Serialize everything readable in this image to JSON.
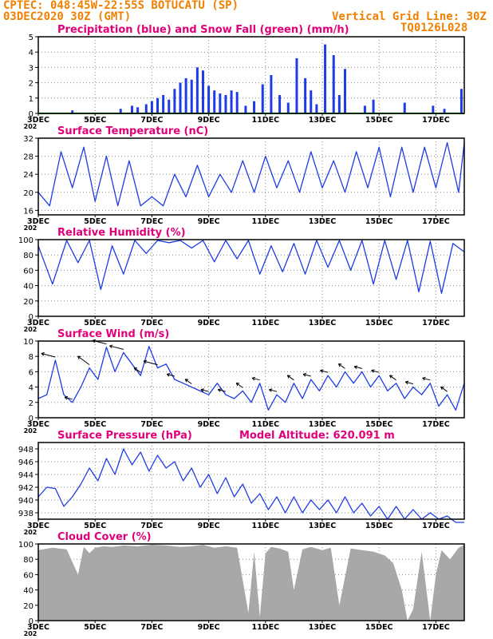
{
  "header": {
    "line1": "CPTEC:   048:45W-22:55S   BOTUCATU (SP)",
    "line2": "03DEC2020 30Z (GMT)",
    "grid_note": "Vertical Grid Line: 30Z",
    "code": "TQ0126L028"
  },
  "colors": {
    "header": "#f08000",
    "title": "#e0007a",
    "series": "#1e3ce6",
    "snow": "#009900",
    "cloud": "#a8a8a8",
    "arrow": "#000000"
  },
  "x_axis": {
    "range_days": [
      3,
      18
    ],
    "tick_days": [
      3,
      5,
      7,
      9,
      11,
      13,
      15,
      17
    ],
    "tick_labels": [
      "3DEC",
      "5DEC",
      "7DEC",
      "9DEC",
      "11DEC",
      "13DEC",
      "15DEC",
      "17DEC"
    ],
    "year_fragment": "202"
  },
  "panels": {
    "precip": {
      "title": "Precipitation (blue) and Snow Fall (green) (mm/h)"
    },
    "temp": {
      "title": "Surface Temperature (nC)"
    },
    "rh": {
      "title": "Relative Humidity (%)"
    },
    "wind": {
      "title": "Surface Wind (m/s)"
    },
    "press": {
      "title": "Surface Pressure (hPa)",
      "altitude": "Model Altitude: 620.091 m"
    },
    "cloud": {
      "title": "Cloud Cover (%)"
    }
  },
  "chart_data": [
    {
      "type": "bar",
      "title": "Precipitation (blue) and Snow Fall (green) (mm/h)",
      "ylim": [
        0,
        5
      ],
      "yticks": [
        0,
        1,
        2,
        3,
        4,
        5
      ],
      "series": [
        {
          "name": "Precipitation",
          "color": "#1e3ce6",
          "x": [
            4.2,
            5.9,
            6.3,
            6.5,
            6.8,
            7.0,
            7.2,
            7.4,
            7.6,
            7.8,
            8.0,
            8.2,
            8.4,
            8.6,
            8.8,
            9.0,
            9.2,
            9.4,
            9.6,
            9.8,
            10.0,
            10.3,
            10.6,
            10.9,
            11.2,
            11.5,
            11.8,
            12.1,
            12.4,
            12.6,
            12.8,
            13.1,
            13.4,
            13.6,
            13.8,
            14.5,
            14.8,
            15.9,
            16.9,
            17.3,
            17.9
          ],
          "values": [
            0.2,
            0.3,
            0.5,
            0.4,
            0.6,
            0.8,
            1.0,
            1.2,
            0.9,
            1.6,
            2.0,
            2.3,
            2.2,
            3.0,
            2.8,
            1.8,
            1.5,
            1.3,
            1.2,
            1.5,
            1.4,
            0.5,
            0.8,
            1.9,
            2.5,
            1.2,
            0.7,
            3.6,
            2.3,
            1.5,
            0.6,
            4.5,
            3.8,
            1.2,
            2.9,
            0.5,
            0.9,
            0.7,
            0.5,
            0.3,
            1.6
          ]
        },
        {
          "name": "Snow Fall",
          "color": "#009900",
          "x": [
            3,
            18
          ],
          "values": [
            0,
            0
          ]
        }
      ]
    },
    {
      "type": "line",
      "title": "Surface Temperature (nC)",
      "ylim": [
        15,
        32
      ],
      "yticks": [
        16,
        20,
        24,
        28,
        32
      ],
      "x": [
        3.0,
        3.4,
        3.8,
        4.2,
        4.6,
        5.0,
        5.4,
        5.8,
        6.2,
        6.6,
        7.0,
        7.4,
        7.8,
        8.2,
        8.6,
        9.0,
        9.4,
        9.8,
        10.2,
        10.6,
        11.0,
        11.4,
        11.8,
        12.2,
        12.6,
        13.0,
        13.4,
        13.8,
        14.2,
        14.6,
        15.0,
        15.4,
        15.8,
        16.2,
        16.6,
        17.0,
        17.4,
        17.8,
        18.0
      ],
      "values": [
        20,
        17,
        29,
        21,
        30,
        18,
        28,
        17,
        27,
        17,
        19,
        17,
        24,
        19,
        26,
        19,
        24,
        20,
        27,
        20,
        28,
        21,
        27,
        20,
        29,
        21,
        27,
        20,
        29,
        21,
        30,
        19,
        30,
        20,
        30,
        21,
        31,
        20,
        31
      ]
    },
    {
      "type": "line",
      "title": "Relative Humidity (%)",
      "ylim": [
        0,
        100
      ],
      "yticks": [
        0,
        20,
        40,
        60,
        80,
        100
      ],
      "x": [
        3.0,
        3.5,
        4.0,
        4.4,
        4.8,
        5.2,
        5.6,
        6.0,
        6.4,
        6.8,
        7.2,
        7.6,
        8.0,
        8.4,
        8.8,
        9.2,
        9.6,
        10.0,
        10.4,
        10.8,
        11.2,
        11.6,
        12.0,
        12.4,
        12.8,
        13.2,
        13.6,
        14.0,
        14.4,
        14.8,
        15.2,
        15.6,
        16.0,
        16.4,
        16.8,
        17.2,
        17.6,
        18.0
      ],
      "values": [
        92,
        42,
        99,
        70,
        99,
        35,
        92,
        55,
        99,
        82,
        99,
        96,
        99,
        89,
        99,
        71,
        99,
        75,
        99,
        55,
        92,
        58,
        95,
        55,
        99,
        64,
        99,
        60,
        99,
        42,
        99,
        48,
        99,
        32,
        98,
        30,
        95,
        84
      ]
    },
    {
      "type": "line",
      "title": "Surface Wind (m/s)",
      "ylim": [
        0,
        10
      ],
      "yticks": [
        0,
        2,
        4,
        6,
        8,
        10
      ],
      "x": [
        3.0,
        3.3,
        3.6,
        3.9,
        4.2,
        4.5,
        4.8,
        5.1,
        5.4,
        5.7,
        6.0,
        6.3,
        6.6,
        6.9,
        7.2,
        7.5,
        7.8,
        8.1,
        8.4,
        8.7,
        9.0,
        9.3,
        9.6,
        9.9,
        10.2,
        10.5,
        10.8,
        11.1,
        11.4,
        11.7,
        12.0,
        12.3,
        12.6,
        12.9,
        13.2,
        13.5,
        13.8,
        14.1,
        14.4,
        14.7,
        15.0,
        15.3,
        15.6,
        15.9,
        16.2,
        16.5,
        16.8,
        17.1,
        17.4,
        17.7,
        18.0
      ],
      "values": [
        2.5,
        3.0,
        7.5,
        3.0,
        2.0,
        4.0,
        6.5,
        5.0,
        9.2,
        6.0,
        8.5,
        7.0,
        5.5,
        9.3,
        6.5,
        7.0,
        5.0,
        4.5,
        4.0,
        3.5,
        3.0,
        4.5,
        3.0,
        2.5,
        3.5,
        2.0,
        4.5,
        1.0,
        3.0,
        2.0,
        4.5,
        2.5,
        5.0,
        3.5,
        5.5,
        4.0,
        6.0,
        4.5,
        6.0,
        4.0,
        5.5,
        3.5,
        4.5,
        2.5,
        4.0,
        3.0,
        4.5,
        1.5,
        3.0,
        1.0,
        4.5
      ]
    },
    {
      "type": "line",
      "title": "Surface Pressure (hPa)",
      "ylim": [
        937,
        949
      ],
      "yticks": [
        938,
        940,
        942,
        944,
        946,
        948
      ],
      "x": [
        3.0,
        3.3,
        3.6,
        3.9,
        4.2,
        4.5,
        4.8,
        5.1,
        5.4,
        5.7,
        6.0,
        6.3,
        6.6,
        6.9,
        7.2,
        7.5,
        7.8,
        8.1,
        8.4,
        8.7,
        9.0,
        9.3,
        9.6,
        9.9,
        10.2,
        10.5,
        10.8,
        11.1,
        11.4,
        11.7,
        12.0,
        12.3,
        12.6,
        12.9,
        13.2,
        13.5,
        13.8,
        14.1,
        14.4,
        14.7,
        15.0,
        15.3,
        15.6,
        15.9,
        16.2,
        16.5,
        16.8,
        17.1,
        17.4,
        17.7,
        18.0
      ],
      "values": [
        940.5,
        942.0,
        941.8,
        939.0,
        940.5,
        942.5,
        945.0,
        943.0,
        946.5,
        944.0,
        948.0,
        945.5,
        947.5,
        944.5,
        947.0,
        945.0,
        946.0,
        943.0,
        945.0,
        942.0,
        944.0,
        941.0,
        943.5,
        940.5,
        942.5,
        939.5,
        941.0,
        938.5,
        940.5,
        938.0,
        940.5,
        938.0,
        940.0,
        938.5,
        940.0,
        938.0,
        940.5,
        938.0,
        939.5,
        937.5,
        939.0,
        937.0,
        939.0,
        937.0,
        938.5,
        937.0,
        938.0,
        937.0,
        937.5,
        936.5,
        936.5
      ]
    },
    {
      "type": "area",
      "title": "Cloud Cover (%)",
      "ylim": [
        0,
        100
      ],
      "yticks": [
        0,
        20,
        40,
        60,
        80,
        100
      ],
      "x": [
        3.0,
        3.5,
        4.0,
        4.4,
        4.6,
        4.8,
        5.0,
        5.3,
        5.6,
        6.0,
        6.5,
        7.0,
        7.5,
        8.0,
        8.4,
        8.8,
        9.2,
        9.6,
        10.0,
        10.4,
        10.6,
        10.8,
        11.0,
        11.2,
        11.5,
        11.8,
        12.0,
        12.3,
        12.6,
        13.0,
        13.3,
        13.6,
        14.0,
        14.4,
        14.8,
        15.2,
        15.5,
        15.8,
        16.0,
        16.2,
        16.5,
        16.8,
        17.0,
        17.2,
        17.5,
        17.8,
        18.0
      ],
      "values": [
        92,
        95,
        93,
        60,
        96,
        88,
        95,
        97,
        96,
        98,
        97,
        99,
        98,
        96,
        97,
        99,
        95,
        97,
        95,
        10,
        90,
        5,
        88,
        96,
        94,
        90,
        40,
        93,
        96,
        92,
        95,
        20,
        94,
        92,
        90,
        85,
        75,
        40,
        0,
        15,
        90,
        0,
        60,
        92,
        80,
        95,
        99
      ]
    }
  ]
}
